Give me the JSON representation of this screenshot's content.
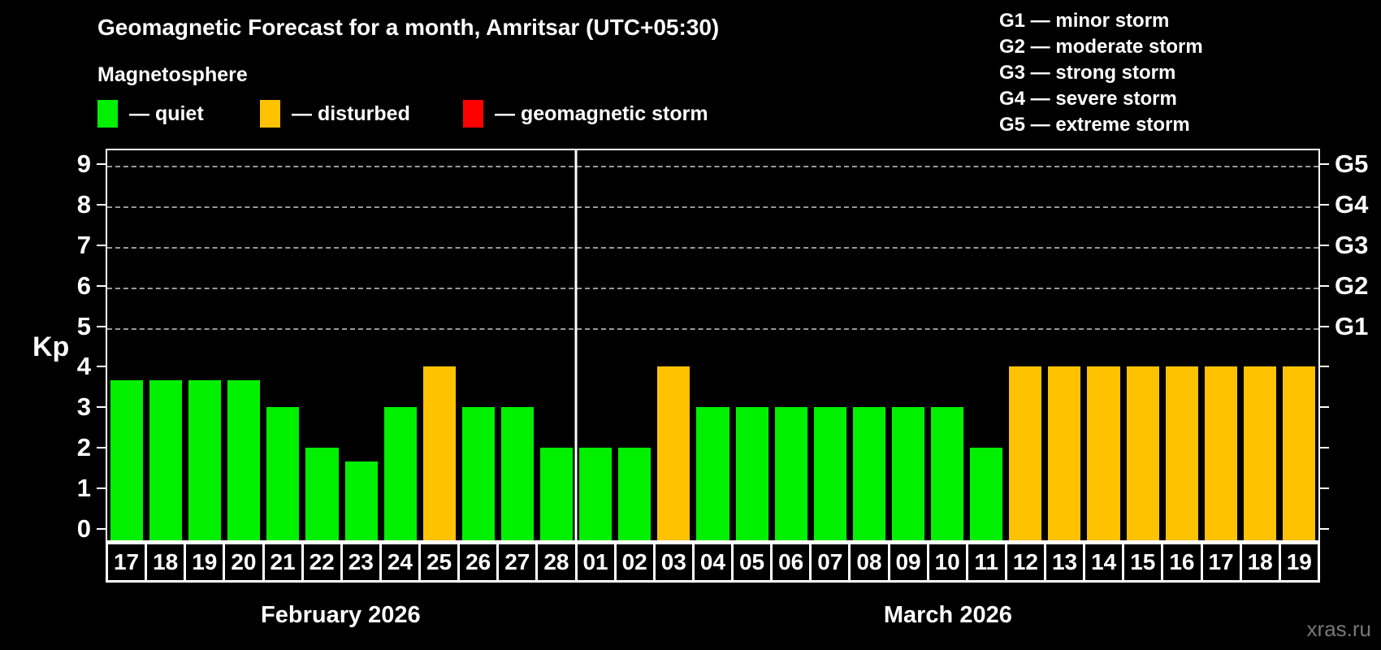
{
  "header": {
    "title": "Geomagnetic Forecast for a month, Amritsar (UTC+05:30)",
    "subtitle": "Magnetosphere"
  },
  "legend": [
    {
      "name": "quiet",
      "label": "— quiet",
      "color": "#00f000"
    },
    {
      "name": "disturbed",
      "label": "— disturbed",
      "color": "#ffc200"
    },
    {
      "name": "storm",
      "label": "— geomagnetic storm",
      "color": "#ff0000"
    }
  ],
  "g_scale_legend": [
    "G1 — minor storm",
    "G2 — moderate storm",
    "G3 — strong storm",
    "G4 — severe storm",
    "G5 — extreme storm"
  ],
  "watermark": "xras.ru",
  "chart_data": {
    "type": "bar",
    "title": "Geomagnetic Forecast for a month, Amritsar (UTC+05:30)",
    "ylabel": "Kp",
    "ylim": [
      0,
      9.4
    ],
    "grid": "dashed horizontal at Kp 5-9",
    "legend_position": "top",
    "yticks_left": [
      "0",
      "1",
      "2",
      "3",
      "4",
      "5",
      "6",
      "7",
      "8",
      "9"
    ],
    "yticks_right": [
      {
        "kp": 5,
        "label": "G1"
      },
      {
        "kp": 6,
        "label": "G2"
      },
      {
        "kp": 7,
        "label": "G3"
      },
      {
        "kp": 8,
        "label": "G4"
      },
      {
        "kp": 9,
        "label": "G5"
      }
    ],
    "gridlines_kp": [
      5,
      6,
      7,
      8,
      9
    ],
    "status_colors": {
      "quiet": "#00f000",
      "disturbed": "#ffc200",
      "storm": "#ff0000"
    },
    "months": [
      {
        "label": "February 2026",
        "days": [
          {
            "day": "17",
            "kp": 3.67,
            "status": "quiet"
          },
          {
            "day": "18",
            "kp": 3.67,
            "status": "quiet"
          },
          {
            "day": "19",
            "kp": 3.67,
            "status": "quiet"
          },
          {
            "day": "20",
            "kp": 3.67,
            "status": "quiet"
          },
          {
            "day": "21",
            "kp": 3,
            "status": "quiet"
          },
          {
            "day": "22",
            "kp": 2,
            "status": "quiet"
          },
          {
            "day": "23",
            "kp": 1.67,
            "status": "quiet"
          },
          {
            "day": "24",
            "kp": 3,
            "status": "quiet"
          },
          {
            "day": "25",
            "kp": 4,
            "status": "disturbed"
          },
          {
            "day": "26",
            "kp": 3,
            "status": "quiet"
          },
          {
            "day": "27",
            "kp": 3,
            "status": "quiet"
          },
          {
            "day": "28",
            "kp": 2,
            "status": "quiet"
          }
        ]
      },
      {
        "label": "March 2026",
        "days": [
          {
            "day": "01",
            "kp": 2,
            "status": "quiet"
          },
          {
            "day": "02",
            "kp": 2,
            "status": "quiet"
          },
          {
            "day": "03",
            "kp": 4,
            "status": "disturbed"
          },
          {
            "day": "04",
            "kp": 3,
            "status": "quiet"
          },
          {
            "day": "05",
            "kp": 3,
            "status": "quiet"
          },
          {
            "day": "06",
            "kp": 3,
            "status": "quiet"
          },
          {
            "day": "07",
            "kp": 3,
            "status": "quiet"
          },
          {
            "day": "08",
            "kp": 3,
            "status": "quiet"
          },
          {
            "day": "09",
            "kp": 3,
            "status": "quiet"
          },
          {
            "day": "10",
            "kp": 3,
            "status": "quiet"
          },
          {
            "day": "11",
            "kp": 2,
            "status": "quiet"
          },
          {
            "day": "12",
            "kp": 4,
            "status": "disturbed"
          },
          {
            "day": "13",
            "kp": 4,
            "status": "disturbed"
          },
          {
            "day": "14",
            "kp": 4,
            "status": "disturbed"
          },
          {
            "day": "15",
            "kp": 4,
            "status": "disturbed"
          },
          {
            "day": "16",
            "kp": 4,
            "status": "disturbed"
          },
          {
            "day": "17",
            "kp": 4,
            "status": "disturbed"
          },
          {
            "day": "18",
            "kp": 4,
            "status": "disturbed"
          },
          {
            "day": "19",
            "kp": 4,
            "status": "disturbed"
          }
        ]
      }
    ]
  }
}
